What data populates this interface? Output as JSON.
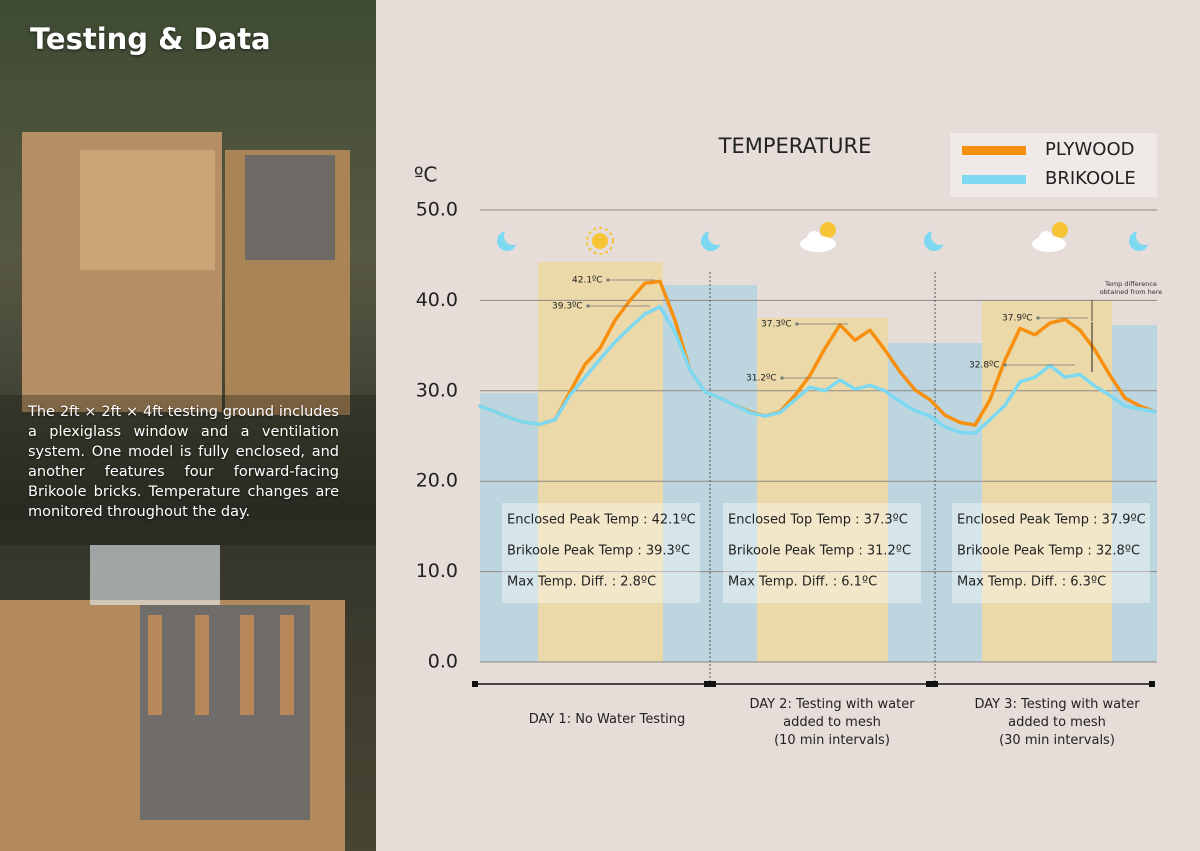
{
  "page": {
    "title": "Testing & Data",
    "description": "The 2ft × 2ft × 4ft testing ground includes a plexiglass window and a ventilation system. One model is fully enclosed, and another features four forward-facing Brikoole bricks. Temperature changes are monitored throughout the day."
  },
  "chart_data": {
    "type": "line",
    "title": "TEMPERATURE",
    "y_label": "ºC",
    "ylim": [
      0,
      50
    ],
    "yticks": [
      {
        "value": 0,
        "label": "0.0"
      },
      {
        "value": 10,
        "label": "10.0"
      },
      {
        "value": 20,
        "label": "20.0"
      },
      {
        "value": 30,
        "label": "30.0"
      },
      {
        "value": 40,
        "label": "40.0"
      },
      {
        "value": 50,
        "label": "50.0"
      }
    ],
    "grid": true,
    "legend": "top-right",
    "categories": [
      null,
      null,
      null,
      null,
      null,
      null,
      null,
      null,
      null,
      null,
      null,
      null,
      null,
      null,
      null,
      null,
      null,
      null,
      null,
      null,
      null,
      null,
      null,
      null,
      null,
      null,
      null,
      null,
      null,
      null,
      null,
      null,
      null,
      null,
      null,
      null,
      null,
      null,
      null,
      null,
      null,
      null,
      null,
      null,
      null,
      null
    ],
    "series": [
      {
        "name": "PLYWOOD",
        "color": "#f7900f",
        "values": [
          28.3,
          27.7,
          27.0,
          26.5,
          26.3,
          26.8,
          29.9,
          32.9,
          34.7,
          37.8,
          40.0,
          41.9,
          42.1,
          37.8,
          32.3,
          29.9,
          29.2,
          28.4,
          27.7,
          27.2,
          27.7,
          29.5,
          31.7,
          34.7,
          37.3,
          35.6,
          36.7,
          34.5,
          32.1,
          30.1,
          29.0,
          27.3,
          26.5,
          26.2,
          29.0,
          33.4,
          36.9,
          36.2,
          37.5,
          37.9,
          36.7,
          34.5,
          31.7,
          29.2,
          28.3,
          27.7
        ]
      },
      {
        "name": "BRIKOOLE",
        "color": "#7dd8f2",
        "values": [
          28.3,
          27.7,
          27.0,
          26.5,
          26.3,
          26.8,
          29.5,
          31.5,
          33.5,
          35.4,
          37.0,
          38.5,
          39.3,
          36.5,
          32.3,
          29.9,
          29.2,
          28.4,
          27.6,
          27.2,
          27.6,
          29.0,
          30.4,
          30.0,
          31.2,
          30.2,
          30.6,
          30.0,
          28.8,
          27.8,
          27.2,
          26.0,
          25.4,
          25.3,
          26.8,
          28.4,
          31.0,
          31.5,
          32.8,
          31.5,
          31.8,
          30.5,
          29.5,
          28.3,
          28.0,
          27.7
        ]
      }
    ],
    "annotations": [
      "42.1ºC",
      "39.3ºC",
      "37.3ºC",
      "31.2ºC",
      "37.9ºC",
      "32.8ºC",
      "Temp difference obtained from here"
    ],
    "info_boxes": [
      [
        "Enclosed Peak Temp : 42.1ºC",
        "Brikoole Peak Temp : 39.3ºC",
        "Max Temp. Diff. : 2.8ºC"
      ],
      [
        "Enclosed Top Temp : 37.3ºC",
        "Brikoole Peak Temp : 31.2ºC",
        "Max Temp. Diff. : 6.1ºC"
      ],
      [
        "Enclosed Peak Temp : 37.9ºC",
        "Brikoole Peak Temp : 32.8ºC",
        "Max Temp. Diff. : 6.3ºC"
      ]
    ],
    "day_labels": [
      [
        "DAY 1: No Water Testing"
      ],
      [
        "DAY 2: Testing with water",
        "added to mesh",
        "(10 min intervals)"
      ],
      [
        "DAY 3: Testing with water",
        "added to mesh",
        "(30 min intervals)"
      ]
    ]
  }
}
